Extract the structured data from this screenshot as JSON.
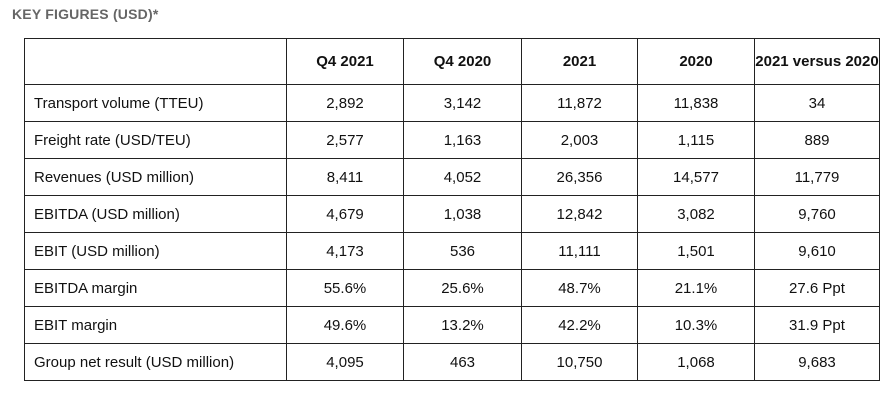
{
  "heading": "KEY FIGURES (USD)*",
  "table": {
    "columns": [
      "",
      "Q4 2021",
      "Q4 2020",
      "2021",
      "2020",
      "2021 versus 2020"
    ],
    "rows": [
      [
        "Transport volume (TTEU)",
        "2,892",
        "3,142",
        "11,872",
        "11,838",
        "34"
      ],
      [
        "Freight rate (USD/TEU)",
        "2,577",
        "1,163",
        "2,003",
        "1,115",
        "889"
      ],
      [
        "Revenues (USD million)",
        "8,411",
        "4,052",
        "26,356",
        "14,577",
        "11,779"
      ],
      [
        "EBITDA (USD million)",
        "4,679",
        "1,038",
        "12,842",
        "3,082",
        "9,760"
      ],
      [
        "EBIT (USD million)",
        "4,173",
        "536",
        "11,111",
        "1,501",
        "9,610"
      ],
      [
        "EBITDA margin",
        "55.6%",
        "25.6%",
        "48.7%",
        "21.1%",
        "27.6 Ppt"
      ],
      [
        "EBIT margin",
        "49.6%",
        "13.2%",
        "42.2%",
        "10.3%",
        "31.9 Ppt"
      ],
      [
        "Group net result (USD million)",
        "4,095",
        "463",
        "10,750",
        "1,068",
        "9,683"
      ]
    ]
  }
}
